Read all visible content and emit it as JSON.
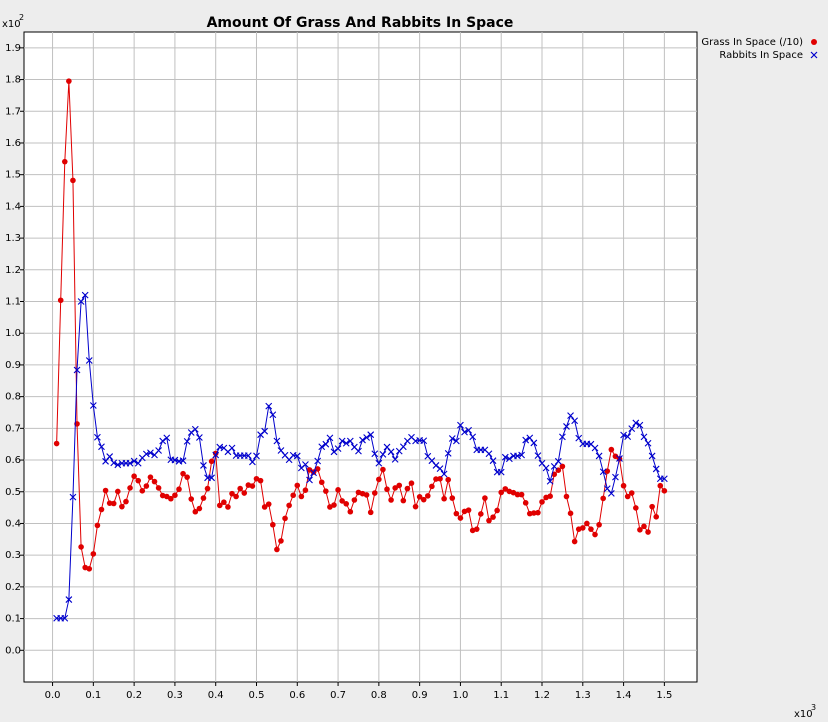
{
  "chart_data": {
    "type": "line",
    "title": "Amount Of Grass And Rabbits In Space",
    "xlabel": "",
    "ylabel": "",
    "x_multiplier_label": "x10",
    "x_multiplier_exp": "3",
    "y_multiplier_label": "x10",
    "y_multiplier_exp": "2",
    "xlim": [
      -0.07,
      1.58
    ],
    "ylim": [
      -0.1,
      1.95
    ],
    "xticks": [
      "0.0",
      "0.1",
      "0.2",
      "0.3",
      "0.4",
      "0.5",
      "0.6",
      "0.7",
      "0.8",
      "0.9",
      "1.0",
      "1.1",
      "1.2",
      "1.3",
      "1.4",
      "1.5"
    ],
    "yticks": [
      "0.0",
      "0.1",
      "0.2",
      "0.3",
      "0.4",
      "0.5",
      "0.6",
      "0.7",
      "0.8",
      "0.9",
      "1.0",
      "1.1",
      "1.2",
      "1.3",
      "1.4",
      "1.5",
      "1.6",
      "1.7",
      "1.8",
      "1.9"
    ],
    "grid": true,
    "legend_position": "outside-top-right",
    "series": [
      {
        "name": "Grass In Space (/10)",
        "color": "#e00000",
        "marker": "dot",
        "points": [
          [
            0.01,
            0.652
          ],
          [
            0.02,
            1.104
          ],
          [
            0.03,
            1.541
          ],
          [
            0.04,
            1.795
          ],
          [
            0.05,
            1.482
          ],
          [
            0.06,
            0.714
          ],
          [
            0.07,
            0.326
          ],
          [
            0.08,
            0.261
          ],
          [
            0.09,
            0.257
          ],
          [
            0.1,
            0.304
          ],
          [
            0.11,
            0.394
          ],
          [
            0.12,
            0.444
          ],
          [
            0.13,
            0.504
          ],
          [
            0.14,
            0.464
          ],
          [
            0.15,
            0.463
          ],
          [
            0.16,
            0.501
          ],
          [
            0.17,
            0.453
          ],
          [
            0.18,
            0.469
          ],
          [
            0.19,
            0.512
          ],
          [
            0.2,
            0.549
          ],
          [
            0.21,
            0.535
          ],
          [
            0.22,
            0.503
          ],
          [
            0.23,
            0.518
          ],
          [
            0.24,
            0.546
          ],
          [
            0.25,
            0.532
          ],
          [
            0.26,
            0.512
          ],
          [
            0.27,
            0.488
          ],
          [
            0.28,
            0.485
          ],
          [
            0.29,
            0.478
          ],
          [
            0.3,
            0.489
          ],
          [
            0.31,
            0.508
          ],
          [
            0.32,
            0.557
          ],
          [
            0.33,
            0.546
          ],
          [
            0.34,
            0.477
          ],
          [
            0.35,
            0.437
          ],
          [
            0.36,
            0.447
          ],
          [
            0.37,
            0.48
          ],
          [
            0.38,
            0.51
          ],
          [
            0.39,
            0.596
          ],
          [
            0.4,
            0.621
          ],
          [
            0.41,
            0.457
          ],
          [
            0.42,
            0.467
          ],
          [
            0.43,
            0.452
          ],
          [
            0.44,
            0.494
          ],
          [
            0.45,
            0.485
          ],
          [
            0.46,
            0.51
          ],
          [
            0.47,
            0.496
          ],
          [
            0.48,
            0.521
          ],
          [
            0.49,
            0.518
          ],
          [
            0.5,
            0.541
          ],
          [
            0.51,
            0.535
          ],
          [
            0.52,
            0.452
          ],
          [
            0.53,
            0.461
          ],
          [
            0.54,
            0.396
          ],
          [
            0.55,
            0.318
          ],
          [
            0.56,
            0.345
          ],
          [
            0.57,
            0.416
          ],
          [
            0.58,
            0.457
          ],
          [
            0.59,
            0.489
          ],
          [
            0.6,
            0.52
          ],
          [
            0.61,
            0.485
          ],
          [
            0.62,
            0.505
          ],
          [
            0.63,
            0.569
          ],
          [
            0.64,
            0.562
          ],
          [
            0.65,
            0.572
          ],
          [
            0.66,
            0.53
          ],
          [
            0.67,
            0.502
          ],
          [
            0.68,
            0.452
          ],
          [
            0.69,
            0.458
          ],
          [
            0.7,
            0.506
          ],
          [
            0.71,
            0.471
          ],
          [
            0.72,
            0.462
          ],
          [
            0.73,
            0.437
          ],
          [
            0.74,
            0.474
          ],
          [
            0.75,
            0.498
          ],
          [
            0.76,
            0.494
          ],
          [
            0.77,
            0.49
          ],
          [
            0.78,
            0.435
          ],
          [
            0.79,
            0.496
          ],
          [
            0.8,
            0.539
          ],
          [
            0.81,
            0.57
          ],
          [
            0.82,
            0.508
          ],
          [
            0.83,
            0.474
          ],
          [
            0.84,
            0.512
          ],
          [
            0.85,
            0.52
          ],
          [
            0.86,
            0.472
          ],
          [
            0.87,
            0.51
          ],
          [
            0.88,
            0.527
          ],
          [
            0.89,
            0.453
          ],
          [
            0.9,
            0.484
          ],
          [
            0.91,
            0.475
          ],
          [
            0.92,
            0.487
          ],
          [
            0.93,
            0.517
          ],
          [
            0.94,
            0.54
          ],
          [
            0.95,
            0.541
          ],
          [
            0.96,
            0.478
          ],
          [
            0.97,
            0.538
          ],
          [
            0.98,
            0.48
          ],
          [
            0.99,
            0.431
          ],
          [
            1.0,
            0.417
          ],
          [
            1.01,
            0.438
          ],
          [
            1.02,
            0.442
          ],
          [
            1.03,
            0.378
          ],
          [
            1.04,
            0.382
          ],
          [
            1.05,
            0.43
          ],
          [
            1.06,
            0.48
          ],
          [
            1.07,
            0.409
          ],
          [
            1.08,
            0.42
          ],
          [
            1.09,
            0.441
          ],
          [
            1.1,
            0.498
          ],
          [
            1.11,
            0.509
          ],
          [
            1.12,
            0.501
          ],
          [
            1.13,
            0.497
          ],
          [
            1.14,
            0.491
          ],
          [
            1.15,
            0.491
          ],
          [
            1.16,
            0.465
          ],
          [
            1.17,
            0.431
          ],
          [
            1.18,
            0.433
          ],
          [
            1.19,
            0.434
          ],
          [
            1.2,
            0.468
          ],
          [
            1.21,
            0.482
          ],
          [
            1.22,
            0.486
          ],
          [
            1.23,
            0.555
          ],
          [
            1.24,
            0.568
          ],
          [
            1.25,
            0.58
          ],
          [
            1.26,
            0.485
          ],
          [
            1.27,
            0.432
          ],
          [
            1.28,
            0.343
          ],
          [
            1.29,
            0.382
          ],
          [
            1.3,
            0.386
          ],
          [
            1.31,
            0.4
          ],
          [
            1.32,
            0.382
          ],
          [
            1.33,
            0.365
          ],
          [
            1.34,
            0.396
          ],
          [
            1.35,
            0.479
          ],
          [
            1.36,
            0.565
          ],
          [
            1.37,
            0.633
          ],
          [
            1.38,
            0.612
          ],
          [
            1.39,
            0.604
          ],
          [
            1.4,
            0.519
          ],
          [
            1.41,
            0.485
          ],
          [
            1.42,
            0.496
          ],
          [
            1.43,
            0.449
          ],
          [
            1.44,
            0.38
          ],
          [
            1.45,
            0.391
          ],
          [
            1.46,
            0.373
          ],
          [
            1.47,
            0.453
          ],
          [
            1.48,
            0.421
          ],
          [
            1.49,
            0.519
          ],
          [
            1.5,
            0.503
          ]
        ]
      },
      {
        "name": "Rabbits In Space",
        "color": "#0000cc",
        "marker": "x",
        "points": [
          [
            0.01,
            0.101
          ],
          [
            0.02,
            0.101
          ],
          [
            0.03,
            0.101
          ],
          [
            0.04,
            0.16
          ],
          [
            0.05,
            0.483
          ],
          [
            0.06,
            0.884
          ],
          [
            0.07,
            1.1
          ],
          [
            0.08,
            1.12
          ],
          [
            0.09,
            0.914
          ],
          [
            0.1,
            0.772
          ],
          [
            0.11,
            0.672
          ],
          [
            0.12,
            0.642
          ],
          [
            0.13,
            0.596
          ],
          [
            0.14,
            0.611
          ],
          [
            0.15,
            0.591
          ],
          [
            0.16,
            0.585
          ],
          [
            0.17,
            0.59
          ],
          [
            0.18,
            0.59
          ],
          [
            0.19,
            0.59
          ],
          [
            0.2,
            0.597
          ],
          [
            0.21,
            0.59
          ],
          [
            0.22,
            0.607
          ],
          [
            0.23,
            0.619
          ],
          [
            0.24,
            0.623
          ],
          [
            0.25,
            0.616
          ],
          [
            0.26,
            0.63
          ],
          [
            0.27,
            0.66
          ],
          [
            0.28,
            0.67
          ],
          [
            0.29,
            0.601
          ],
          [
            0.3,
            0.6
          ],
          [
            0.31,
            0.596
          ],
          [
            0.32,
            0.598
          ],
          [
            0.33,
            0.659
          ],
          [
            0.34,
            0.687
          ],
          [
            0.35,
            0.697
          ],
          [
            0.36,
            0.671
          ],
          [
            0.37,
            0.583
          ],
          [
            0.38,
            0.544
          ],
          [
            0.39,
            0.544
          ],
          [
            0.4,
            0.616
          ],
          [
            0.41,
            0.641
          ],
          [
            0.42,
            0.638
          ],
          [
            0.43,
            0.626
          ],
          [
            0.44,
            0.638
          ],
          [
            0.45,
            0.614
          ],
          [
            0.46,
            0.614
          ],
          [
            0.47,
            0.614
          ],
          [
            0.48,
            0.614
          ],
          [
            0.49,
            0.594
          ],
          [
            0.5,
            0.613
          ],
          [
            0.51,
            0.68
          ],
          [
            0.52,
            0.691
          ],
          [
            0.53,
            0.77
          ],
          [
            0.54,
            0.743
          ],
          [
            0.55,
            0.66
          ],
          [
            0.56,
            0.63
          ],
          [
            0.57,
            0.615
          ],
          [
            0.58,
            0.601
          ],
          [
            0.59,
            0.615
          ],
          [
            0.6,
            0.613
          ],
          [
            0.61,
            0.575
          ],
          [
            0.62,
            0.586
          ],
          [
            0.63,
            0.537
          ],
          [
            0.64,
            0.56
          ],
          [
            0.65,
            0.597
          ],
          [
            0.66,
            0.642
          ],
          [
            0.67,
            0.65
          ],
          [
            0.68,
            0.67
          ],
          [
            0.69,
            0.626
          ],
          [
            0.7,
            0.636
          ],
          [
            0.71,
            0.66
          ],
          [
            0.72,
            0.653
          ],
          [
            0.73,
            0.66
          ],
          [
            0.74,
            0.641
          ],
          [
            0.75,
            0.628
          ],
          [
            0.76,
            0.663
          ],
          [
            0.77,
            0.671
          ],
          [
            0.78,
            0.68
          ],
          [
            0.79,
            0.62
          ],
          [
            0.8,
            0.59
          ],
          [
            0.81,
            0.618
          ],
          [
            0.82,
            0.641
          ],
          [
            0.83,
            0.626
          ],
          [
            0.84,
            0.602
          ],
          [
            0.85,
            0.628
          ],
          [
            0.86,
            0.642
          ],
          [
            0.87,
            0.66
          ],
          [
            0.88,
            0.672
          ],
          [
            0.89,
            0.66
          ],
          [
            0.9,
            0.662
          ],
          [
            0.91,
            0.661
          ],
          [
            0.92,
            0.612
          ],
          [
            0.93,
            0.598
          ],
          [
            0.94,
            0.583
          ],
          [
            0.95,
            0.573
          ],
          [
            0.96,
            0.556
          ],
          [
            0.97,
            0.621
          ],
          [
            0.98,
            0.668
          ],
          [
            0.99,
            0.66
          ],
          [
            1.0,
            0.71
          ],
          [
            1.01,
            0.688
          ],
          [
            1.02,
            0.694
          ],
          [
            1.03,
            0.673
          ],
          [
            1.04,
            0.632
          ],
          [
            1.05,
            0.632
          ],
          [
            1.06,
            0.632
          ],
          [
            1.07,
            0.62
          ],
          [
            1.08,
            0.598
          ],
          [
            1.09,
            0.562
          ],
          [
            1.1,
            0.562
          ],
          [
            1.11,
            0.609
          ],
          [
            1.12,
            0.604
          ],
          [
            1.13,
            0.613
          ],
          [
            1.14,
            0.613
          ],
          [
            1.15,
            0.616
          ],
          [
            1.16,
            0.663
          ],
          [
            1.17,
            0.67
          ],
          [
            1.18,
            0.654
          ],
          [
            1.19,
            0.614
          ],
          [
            1.2,
            0.59
          ],
          [
            1.21,
            0.575
          ],
          [
            1.22,
            0.533
          ],
          [
            1.23,
            0.58
          ],
          [
            1.24,
            0.596
          ],
          [
            1.25,
            0.673
          ],
          [
            1.26,
            0.706
          ],
          [
            1.27,
            0.74
          ],
          [
            1.28,
            0.724
          ],
          [
            1.29,
            0.669
          ],
          [
            1.3,
            0.651
          ],
          [
            1.31,
            0.651
          ],
          [
            1.32,
            0.65
          ],
          [
            1.33,
            0.638
          ],
          [
            1.34,
            0.613
          ],
          [
            1.35,
            0.563
          ],
          [
            1.36,
            0.51
          ],
          [
            1.37,
            0.495
          ],
          [
            1.38,
            0.546
          ],
          [
            1.39,
            0.605
          ],
          [
            1.4,
            0.679
          ],
          [
            1.41,
            0.674
          ],
          [
            1.42,
            0.699
          ],
          [
            1.43,
            0.717
          ],
          [
            1.44,
            0.71
          ],
          [
            1.45,
            0.673
          ],
          [
            1.46,
            0.653
          ],
          [
            1.47,
            0.613
          ],
          [
            1.48,
            0.572
          ],
          [
            1.49,
            0.541
          ],
          [
            1.5,
            0.541
          ]
        ]
      }
    ]
  }
}
